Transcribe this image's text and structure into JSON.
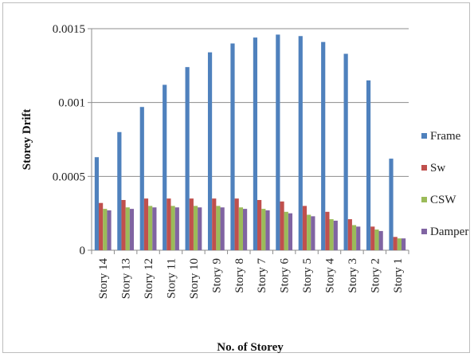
{
  "chart_data": {
    "type": "bar",
    "title": "",
    "xlabel": "No. of Storey",
    "ylabel": "Storey Drift",
    "ylim": [
      0,
      0.0015
    ],
    "yticks": [
      0,
      0.0005,
      0.001,
      0.0015
    ],
    "ytick_labels": [
      "0",
      "0.0005",
      "0.001",
      "0.0015"
    ],
    "grid": "horizontal",
    "legend_position": "right",
    "categories": [
      "Story 14",
      "Story 13",
      "Story 12",
      "Story 11",
      "Story 10",
      "Story 9",
      "Story 8",
      "Story 7",
      "Story 6",
      "Story 5",
      "Story 4",
      "Story 3",
      "Story 2",
      "Story 1"
    ],
    "series": [
      {
        "name": "Frame",
        "color": "#4f81bd",
        "values": [
          0.00063,
          0.0008,
          0.00097,
          0.00112,
          0.00124,
          0.00134,
          0.0014,
          0.00144,
          0.00146,
          0.00145,
          0.00141,
          0.00133,
          0.00115,
          0.00062
        ]
      },
      {
        "name": "Sw",
        "color": "#c0504d",
        "values": [
          0.00032,
          0.00034,
          0.00035,
          0.00035,
          0.00035,
          0.00035,
          0.00035,
          0.00034,
          0.00033,
          0.0003,
          0.00026,
          0.00021,
          0.00016,
          9e-05
        ]
      },
      {
        "name": "CSW",
        "color": "#9bbb59",
        "values": [
          0.00028,
          0.00029,
          0.0003,
          0.0003,
          0.0003,
          0.0003,
          0.00029,
          0.00028,
          0.00026,
          0.00024,
          0.00021,
          0.00017,
          0.00014,
          8e-05
        ]
      },
      {
        "name": "Damper",
        "color": "#8064a2",
        "values": [
          0.00027,
          0.00028,
          0.00029,
          0.00029,
          0.00029,
          0.00029,
          0.00028,
          0.00027,
          0.00025,
          0.00023,
          0.0002,
          0.00016,
          0.00013,
          8e-05
        ]
      }
    ]
  }
}
